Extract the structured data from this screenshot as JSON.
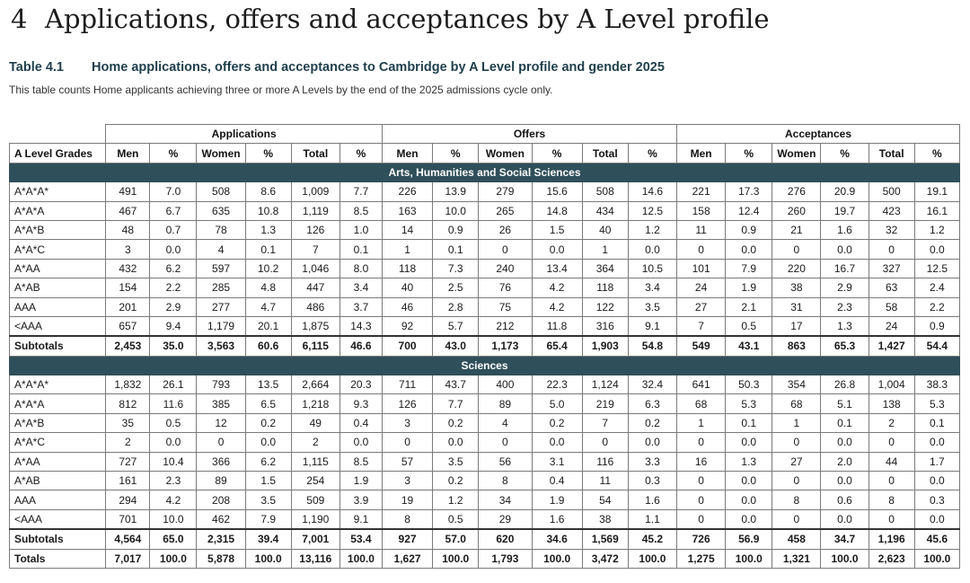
{
  "chapter": {
    "number": "4",
    "title": "Applications, offers and acceptances by A Level profile"
  },
  "table_caption": {
    "label": "Table 4.1",
    "title": "Home applications, offers and acceptances to Cambridge by A Level profile and gender 2025"
  },
  "note": "This table counts Home applicants achieving three or more A Levels by the end of the 2025 admissions cycle only.",
  "header": {
    "groups": [
      "Applications",
      "Offers",
      "Acceptances"
    ],
    "first_col": "A Level Grades",
    "sub": [
      "Men",
      "%",
      "Women",
      "%",
      "Total",
      "%"
    ]
  },
  "sections": [
    {
      "name": "Arts, Humanities and Social Sciences",
      "rows": [
        [
          "A*A*A*",
          "491",
          "7.0",
          "508",
          "8.6",
          "1,009",
          "7.7",
          "226",
          "13.9",
          "279",
          "15.6",
          "508",
          "14.6",
          "221",
          "17.3",
          "276",
          "20.9",
          "500",
          "19.1"
        ],
        [
          "A*A*A",
          "467",
          "6.7",
          "635",
          "10.8",
          "1,119",
          "8.5",
          "163",
          "10.0",
          "265",
          "14.8",
          "434",
          "12.5",
          "158",
          "12.4",
          "260",
          "19.7",
          "423",
          "16.1"
        ],
        [
          "A*A*B",
          "48",
          "0.7",
          "78",
          "1.3",
          "126",
          "1.0",
          "14",
          "0.9",
          "26",
          "1.5",
          "40",
          "1.2",
          "11",
          "0.9",
          "21",
          "1.6",
          "32",
          "1.2"
        ],
        [
          "A*A*C",
          "3",
          "0.0",
          "4",
          "0.1",
          "7",
          "0.1",
          "1",
          "0.1",
          "0",
          "0.0",
          "1",
          "0.0",
          "0",
          "0.0",
          "0",
          "0.0",
          "0",
          "0.0"
        ],
        [
          "A*AA",
          "432",
          "6.2",
          "597",
          "10.2",
          "1,046",
          "8.0",
          "118",
          "7.3",
          "240",
          "13.4",
          "364",
          "10.5",
          "101",
          "7.9",
          "220",
          "16.7",
          "327",
          "12.5"
        ],
        [
          "A*AB",
          "154",
          "2.2",
          "285",
          "4.8",
          "447",
          "3.4",
          "40",
          "2.5",
          "76",
          "4.2",
          "118",
          "3.4",
          "24",
          "1.9",
          "38",
          "2.9",
          "63",
          "2.4"
        ],
        [
          "AAA",
          "201",
          "2.9",
          "277",
          "4.7",
          "486",
          "3.7",
          "46",
          "2.8",
          "75",
          "4.2",
          "122",
          "3.5",
          "27",
          "2.1",
          "31",
          "2.3",
          "58",
          "2.2"
        ],
        [
          "<AAA",
          "657",
          "9.4",
          "1,179",
          "20.1",
          "1,875",
          "14.3",
          "92",
          "5.7",
          "212",
          "11.8",
          "316",
          "9.1",
          "7",
          "0.5",
          "17",
          "1.3",
          "24",
          "0.9"
        ]
      ],
      "subtotal": [
        "Subtotals",
        "2,453",
        "35.0",
        "3,563",
        "60.6",
        "6,115",
        "46.6",
        "700",
        "43.0",
        "1,173",
        "65.4",
        "1,903",
        "54.8",
        "549",
        "43.1",
        "863",
        "65.3",
        "1,427",
        "54.4"
      ]
    },
    {
      "name": "Sciences",
      "rows": [
        [
          "A*A*A*",
          "1,832",
          "26.1",
          "793",
          "13.5",
          "2,664",
          "20.3",
          "711",
          "43.7",
          "400",
          "22.3",
          "1,124",
          "32.4",
          "641",
          "50.3",
          "354",
          "26.8",
          "1,004",
          "38.3"
        ],
        [
          "A*A*A",
          "812",
          "11.6",
          "385",
          "6.5",
          "1,218",
          "9.3",
          "126",
          "7.7",
          "89",
          "5.0",
          "219",
          "6.3",
          "68",
          "5.3",
          "68",
          "5.1",
          "138",
          "5.3"
        ],
        [
          "A*A*B",
          "35",
          "0.5",
          "12",
          "0.2",
          "49",
          "0.4",
          "3",
          "0.2",
          "4",
          "0.2",
          "7",
          "0.2",
          "1",
          "0.1",
          "1",
          "0.1",
          "2",
          "0.1"
        ],
        [
          "A*A*C",
          "2",
          "0.0",
          "0",
          "0.0",
          "2",
          "0.0",
          "0",
          "0.0",
          "0",
          "0.0",
          "0",
          "0.0",
          "0",
          "0.0",
          "0",
          "0.0",
          "0",
          "0.0"
        ],
        [
          "A*AA",
          "727",
          "10.4",
          "366",
          "6.2",
          "1,115",
          "8.5",
          "57",
          "3.5",
          "56",
          "3.1",
          "116",
          "3.3",
          "16",
          "1.3",
          "27",
          "2.0",
          "44",
          "1.7"
        ],
        [
          "A*AB",
          "161",
          "2.3",
          "89",
          "1.5",
          "254",
          "1.9",
          "3",
          "0.2",
          "8",
          "0.4",
          "11",
          "0.3",
          "0",
          "0.0",
          "0",
          "0.0",
          "0",
          "0.0"
        ],
        [
          "AAA",
          "294",
          "4.2",
          "208",
          "3.5",
          "509",
          "3.9",
          "19",
          "1.2",
          "34",
          "1.9",
          "54",
          "1.6",
          "0",
          "0.0",
          "8",
          "0.6",
          "8",
          "0.3"
        ],
        [
          "<AAA",
          "701",
          "10.0",
          "462",
          "7.9",
          "1,190",
          "9.1",
          "8",
          "0.5",
          "29",
          "1.6",
          "38",
          "1.1",
          "0",
          "0.0",
          "0",
          "0.0",
          "0",
          "0.0"
        ]
      ],
      "subtotal": [
        "Subtotals",
        "4,564",
        "65.0",
        "2,315",
        "39.4",
        "7,001",
        "53.4",
        "927",
        "57.0",
        "620",
        "34.6",
        "1,569",
        "45.2",
        "726",
        "56.9",
        "458",
        "34.7",
        "1,196",
        "45.6"
      ]
    }
  ],
  "totals": [
    "Totals",
    "7,017",
    "100.0",
    "5,878",
    "100.0",
    "13,116",
    "100.0",
    "1,627",
    "100.0",
    "1,793",
    "100.0",
    "3,472",
    "100.0",
    "1,275",
    "100.0",
    "1,321",
    "100.0",
    "2,623",
    "100.0"
  ],
  "colors": {
    "section_bar": "#2f4f5a",
    "caption_text": "#1f3e4c"
  }
}
